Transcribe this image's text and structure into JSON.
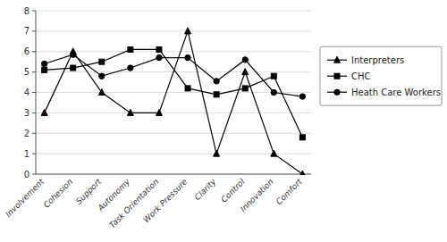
{
  "chart_data": {
    "type": "line",
    "categories": [
      "Involvement",
      "Cohesion",
      "Support",
      "Autonomy",
      "Task Orientation",
      "Work Pressure",
      "Clarity",
      "Control",
      "Innovation",
      "Comfort"
    ],
    "series": [
      {
        "name": "Interpreters",
        "color": "#000000",
        "marker": "triangle",
        "values": [
          3,
          6,
          4,
          3,
          3,
          7,
          1,
          5,
          1,
          0
        ]
      },
      {
        "name": "CHC",
        "color": "#000000",
        "marker": "square",
        "values": [
          5.1,
          5.2,
          5.5,
          6.1,
          6.1,
          4.2,
          3.9,
          4.2,
          4.8,
          1.8
        ]
      },
      {
        "name": "Heath Care Workers",
        "color": "#000000",
        "marker": "circle",
        "values": [
          5.4,
          5.85,
          4.8,
          5.2,
          5.7,
          5.7,
          4.55,
          5.6,
          4.0,
          3.8
        ]
      }
    ],
    "ylim": [
      0,
      8
    ],
    "yticks": [
      0,
      1,
      2,
      3,
      4,
      5,
      6,
      7,
      8
    ],
    "grid": true,
    "legend": "right"
  }
}
